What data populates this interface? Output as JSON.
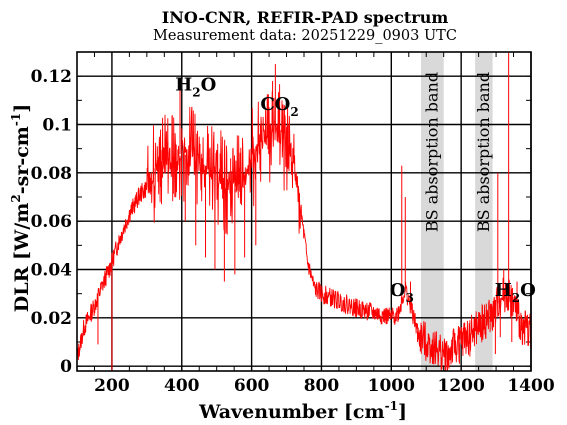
{
  "chart_data": {
    "type": "line",
    "title": "INO-CNR, REFIR-PAD spectrum",
    "subtitle": "Measurement data: 20251229_0903 UTC",
    "xlabel": {
      "main": "Wavenumber [cm",
      "sup": "-1",
      "end": "]"
    },
    "ylabel": {
      "main": "DLR [W/m",
      "sup1": "2",
      "mid": "-sr-cm",
      "sup2": "-1",
      "end": "]"
    },
    "xlim": [
      100,
      1400
    ],
    "ylim": [
      -0.002,
      0.13
    ],
    "x_ticks": [
      200,
      400,
      600,
      800,
      1000,
      1200,
      1400
    ],
    "x_tick_labels": [
      "200",
      "400",
      "600",
      "800",
      "1000",
      "1200",
      "1400"
    ],
    "y_ticks": [
      0,
      0.02,
      0.04,
      0.06,
      0.08,
      0.1,
      0.12
    ],
    "y_tick_labels": [
      "0",
      "0.02",
      "0.04",
      "0.06",
      "0.08",
      "0.1",
      "0.12"
    ],
    "grid": true,
    "line_color": "#ff0000",
    "band_color": "#d9d9d9",
    "bands": [
      {
        "x0": 1085,
        "x1": 1150,
        "label": "BS absorption band"
      },
      {
        "x0": 1240,
        "x1": 1290,
        "label": "BS absorption band"
      }
    ],
    "annotations": [
      {
        "x": 440,
        "y": 0.114,
        "main": "H",
        "sub": "2",
        "end": "O"
      },
      {
        "x": 680,
        "y": 0.106,
        "main": "CO",
        "sub": "2",
        "end": ""
      },
      {
        "x": 1030,
        "y": 0.029,
        "main": "O",
        "sub": "3",
        "end": ""
      },
      {
        "x": 1355,
        "y": 0.029,
        "main": "H",
        "sub": "2",
        "end": "O"
      }
    ],
    "series": [
      {
        "x": [
          100,
          120,
          150,
          180,
          200,
          220,
          250,
          280,
          300,
          320,
          350,
          380,
          400,
          420,
          440,
          460,
          480,
          500,
          520,
          540,
          560,
          580,
          600,
          620,
          640,
          660,
          680,
          700,
          720,
          740,
          760,
          780,
          800,
          850,
          900,
          950,
          1000,
          1020,
          1040,
          1060,
          1080,
          1160,
          1180,
          1200,
          1220,
          1235,
          1295,
          1310,
          1330,
          1350,
          1370,
          1400
        ],
        "y": [
          0.003,
          0.016,
          0.025,
          0.036,
          0.043,
          0.052,
          0.063,
          0.071,
          0.074,
          0.079,
          0.084,
          0.087,
          0.088,
          0.087,
          0.085,
          0.083,
          0.08,
          0.078,
          0.075,
          0.072,
          0.074,
          0.078,
          0.085,
          0.092,
          0.095,
          0.097,
          0.096,
          0.092,
          0.086,
          0.065,
          0.043,
          0.032,
          0.03,
          0.027,
          0.024,
          0.022,
          0.02,
          0.022,
          0.032,
          0.022,
          0.012,
          0.004,
          0.008,
          0.01,
          0.012,
          0.014,
          0.022,
          0.028,
          0.03,
          0.026,
          0.017,
          0.015
        ],
        "spikes": [
          {
            "x": 160,
            "y": 0.009
          },
          {
            "x": 200,
            "y": -0.002
          },
          {
            "x": 290,
            "y": 0.07
          },
          {
            "x": 320,
            "y": 0.082
          },
          {
            "x": 330,
            "y": 0.091
          },
          {
            "x": 345,
            "y": 0.078
          },
          {
            "x": 360,
            "y": 0.093
          },
          {
            "x": 378,
            "y": 0.082
          },
          {
            "x": 395,
            "y": 0.118
          },
          {
            "x": 410,
            "y": 0.06
          },
          {
            "x": 425,
            "y": 0.095
          },
          {
            "x": 440,
            "y": 0.05
          },
          {
            "x": 452,
            "y": 0.092
          },
          {
            "x": 468,
            "y": 0.045
          },
          {
            "x": 480,
            "y": 0.09
          },
          {
            "x": 495,
            "y": 0.04
          },
          {
            "x": 510,
            "y": 0.088
          },
          {
            "x": 522,
            "y": 0.035
          },
          {
            "x": 540,
            "y": 0.086
          },
          {
            "x": 552,
            "y": 0.038
          },
          {
            "x": 568,
            "y": 0.08
          },
          {
            "x": 580,
            "y": 0.045
          },
          {
            "x": 598,
            "y": 0.09
          },
          {
            "x": 612,
            "y": 0.05
          },
          {
            "x": 625,
            "y": 0.1
          },
          {
            "x": 645,
            "y": 0.112
          },
          {
            "x": 660,
            "y": 0.118
          },
          {
            "x": 668,
            "y": 0.125
          },
          {
            "x": 676,
            "y": 0.11
          },
          {
            "x": 690,
            "y": 0.108
          },
          {
            "x": 705,
            "y": 0.1
          },
          {
            "x": 1030,
            "y": 0.083
          },
          {
            "x": 1040,
            "y": 0.07
          },
          {
            "x": 1055,
            "y": 0.035
          },
          {
            "x": 1075,
            "y": 0.01
          },
          {
            "x": 1165,
            "y": -0.001
          },
          {
            "x": 1175,
            "y": 0.012
          },
          {
            "x": 1195,
            "y": 0.001
          },
          {
            "x": 1210,
            "y": 0.018
          },
          {
            "x": 1225,
            "y": 0.004
          },
          {
            "x": 1298,
            "y": 0.005
          },
          {
            "x": 1305,
            "y": 0.08
          },
          {
            "x": 1312,
            "y": 0.012
          },
          {
            "x": 1322,
            "y": 0.04
          },
          {
            "x": 1336,
            "y": 0.13
          },
          {
            "x": 1345,
            "y": 0.01
          },
          {
            "x": 1360,
            "y": 0.035
          },
          {
            "x": 1385,
            "y": 0.02
          }
        ]
      }
    ]
  }
}
